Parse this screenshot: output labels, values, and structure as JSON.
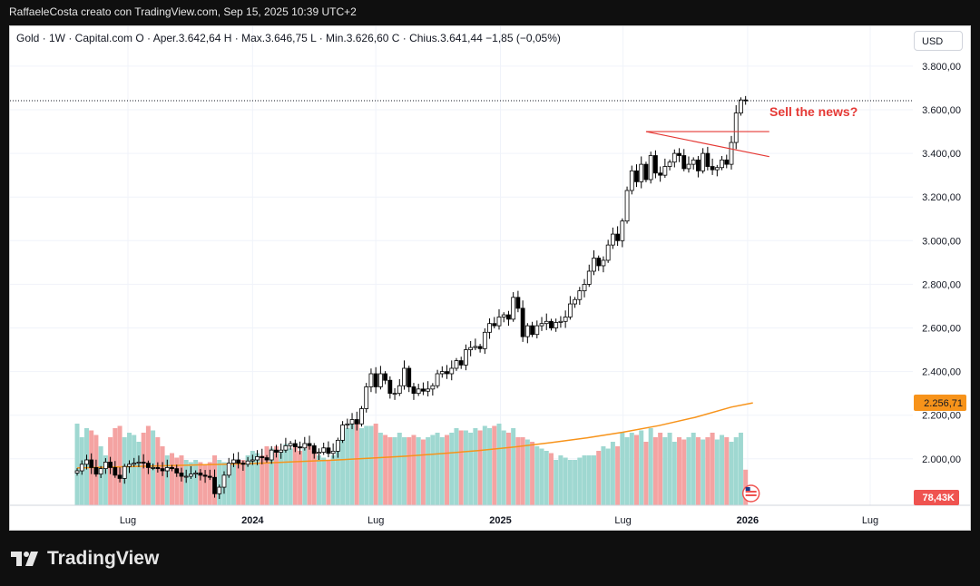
{
  "header": {
    "title": "RaffaeleCosta creato con TradingView.com, Sep 15, 2025 10:39 UTC+2"
  },
  "legend": {
    "text": "Gold · 1W · Capital.com  O · Aper.3.642,64  H · Max.3.646,75  L · Min.3.626,60  C · Chius.3.641,44  −1,85 (−0,05%)"
  },
  "currency_button": "USD",
  "annotation": "Sell the news?",
  "footer": {
    "brand": "TradingView"
  },
  "colors": {
    "up": "#26a69a",
    "down": "#ef5350",
    "vol_up": "#9fd8d1",
    "vol_down": "#f4a3a2",
    "ma": "#f7931a",
    "trendline": "#e53935"
  },
  "chart_data": {
    "type": "candlestick",
    "timeframe": "1W",
    "symbol": "Gold",
    "source": "Capital.com",
    "last_price": 3641.44,
    "y_ticks": [
      "3.800,00",
      "3.600,00",
      "3.400,00",
      "3.200,00",
      "3.000,00",
      "2.800,00",
      "2.600,00",
      "2.400,00",
      "2.200,00",
      "2.000,00"
    ],
    "y_tick_values": [
      3800,
      3600,
      3400,
      3200,
      3000,
      2800,
      2600,
      2400,
      2200,
      2000
    ],
    "x_labels": [
      {
        "label": "Lug",
        "date": "2023-07-01"
      },
      {
        "label": "2024",
        "date": "2024-01-01"
      },
      {
        "label": "Lug",
        "date": "2024-07-01"
      },
      {
        "label": "2025",
        "date": "2025-01-01"
      },
      {
        "label": "Lug",
        "date": "2025-07-01"
      },
      {
        "label": "2026",
        "date": "2026-01-01"
      },
      {
        "label": "Lug",
        "date": "2026-07-01"
      }
    ],
    "x_range": [
      "2023-03-20",
      "2026-10-26"
    ],
    "ylim": [
      1900,
      3950
    ],
    "closes": [
      1945,
      1975,
      1995,
      1960,
      1930,
      1955,
      1985,
      1960,
      1925,
      1910,
      1965,
      1975,
      1980,
      1985,
      1980,
      1960,
      1960,
      1955,
      1945,
      1960,
      1955,
      1935,
      1920,
      1920,
      1930,
      1935,
      1925,
      1920,
      1915,
      1840,
      1870,
      1925,
      1980,
      1995,
      1980,
      1975,
      1990,
      1995,
      2010,
      2005,
      1995,
      2040,
      2030,
      2040,
      2060,
      2070,
      2055,
      2050,
      2070,
      2060,
      2025,
      2030,
      2050,
      2025,
      2035,
      2085,
      2155,
      2160,
      2180,
      2160,
      2230,
      2330,
      2390,
      2330,
      2390,
      2360,
      2300,
      2300,
      2335,
      2415,
      2330,
      2300,
      2320,
      2310,
      2320,
      2335,
      2390,
      2400,
      2390,
      2415,
      2450,
      2430,
      2500,
      2510,
      2515,
      2505,
      2580,
      2620,
      2610,
      2650,
      2660,
      2640,
      2740,
      2690,
      2560,
      2610,
      2570,
      2610,
      2620,
      2630,
      2600,
      2625,
      2630,
      2650,
      2710,
      2730,
      2770,
      2800,
      2860,
      2920,
      2885,
      2910,
      2980,
      3030,
      3000,
      3090,
      3230,
      3320,
      3270,
      3350,
      3280,
      3390,
      3310,
      3300,
      3340,
      3360,
      3400,
      3390,
      3330,
      3350,
      3370,
      3320,
      3400,
      3340,
      3325,
      3335,
      3370,
      3350,
      3450,
      3585,
      3645,
      3641
    ],
    "volumes_k": [
      180,
      150,
      170,
      165,
      155,
      130,
      110,
      150,
      170,
      175,
      150,
      160,
      155,
      140,
      160,
      175,
      165,
      150,
      130,
      110,
      115,
      105,
      110,
      100,
      95,
      100,
      95,
      90,
      95,
      110,
      100,
      95,
      80,
      90,
      95,
      100,
      110,
      120,
      115,
      110,
      130,
      125,
      130,
      120,
      135,
      125,
      130,
      120,
      125,
      130,
      120,
      110,
      105,
      100,
      110,
      130,
      165,
      170,
      180,
      185,
      170,
      175,
      175,
      180,
      160,
      155,
      150,
      150,
      160,
      150,
      150,
      155,
      150,
      145,
      150,
      155,
      160,
      150,
      155,
      160,
      170,
      165,
      165,
      160,
      170,
      165,
      175,
      170,
      175,
      180,
      165,
      160,
      170,
      150,
      150,
      145,
      140,
      130,
      125,
      120,
      115,
      100,
      110,
      105,
      100,
      100,
      105,
      110,
      110,
      110,
      120,
      130,
      125,
      140,
      130,
      160,
      150,
      160,
      155,
      165,
      140,
      170,
      150,
      160,
      150,
      160,
      140,
      150,
      145,
      150,
      160,
      150,
      145,
      150,
      160,
      145,
      155,
      150,
      140,
      150,
      160,
      78.43
    ],
    "volume_last": "78,43K",
    "ma_label": "2.256,71",
    "ma_value": 2256.71,
    "ma_points": [
      [
        1999,
        1958
      ],
      [
        2010,
        1963
      ],
      [
        2020,
        1967
      ],
      [
        2030,
        1971
      ],
      [
        2040,
        1975
      ],
      [
        2050,
        1980
      ],
      [
        2060,
        1987
      ],
      [
        2070,
        1994
      ],
      [
        2080,
        2003
      ],
      [
        2090,
        2012
      ],
      [
        2100,
        2024
      ],
      [
        2110,
        2038
      ],
      [
        2120,
        2054
      ],
      [
        2130,
        2074
      ],
      [
        2140,
        2096
      ],
      [
        2150,
        2122
      ],
      [
        2160,
        2152
      ],
      [
        2170,
        2190
      ],
      [
        2180,
        2237
      ],
      [
        2186,
        2256.71
      ]
    ],
    "trendlines": [
      {
        "from": {
          "week": 120,
          "price": 3500
        },
        "to": {
          "week": 146,
          "price": 3500
        }
      },
      {
        "from": {
          "week": 120,
          "price": 3500
        },
        "to": {
          "week": 146,
          "price": 3385
        }
      }
    ]
  }
}
